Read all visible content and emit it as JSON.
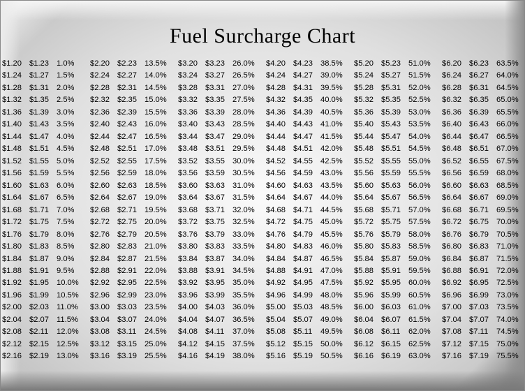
{
  "title": "Fuel Surcharge Chart",
  "table": {
    "type": "table",
    "columns_per_block": 3,
    "blocks": 6,
    "rows": 25,
    "background_color": "#e8e8e8",
    "text_color": "#000000",
    "title_fontsize": 30,
    "cell_fontsize": 11,
    "font_family_title": "Georgia",
    "font_family_body": "Arial",
    "start_low": 1.2,
    "start_high": 1.23,
    "start_pct": 1.0,
    "step_low": 0.04,
    "step_high": 0.04,
    "step_pct": 0.5,
    "data": [
      [
        "$1.20",
        "$1.23",
        "1.0%",
        "$2.20",
        "$2.23",
        "13.5%",
        "$3.20",
        "$3.23",
        "26.0%",
        "$4.20",
        "$4.23",
        "38.5%",
        "$5.20",
        "$5.23",
        "51.0%",
        "$6.20",
        "$6.23",
        "63.5%"
      ],
      [
        "$1.24",
        "$1.27",
        "1.5%",
        "$2.24",
        "$2.27",
        "14.0%",
        "$3.24",
        "$3.27",
        "26.5%",
        "$4.24",
        "$4.27",
        "39.0%",
        "$5.24",
        "$5.27",
        "51.5%",
        "$6.24",
        "$6.27",
        "64.0%"
      ],
      [
        "$1.28",
        "$1.31",
        "2.0%",
        "$2.28",
        "$2.31",
        "14.5%",
        "$3.28",
        "$3.31",
        "27.0%",
        "$4.28",
        "$4.31",
        "39.5%",
        "$5.28",
        "$5.31",
        "52.0%",
        "$6.28",
        "$6.31",
        "64.5%"
      ],
      [
        "$1.32",
        "$1.35",
        "2.5%",
        "$2.32",
        "$2.35",
        "15.0%",
        "$3.32",
        "$3.35",
        "27.5%",
        "$4.32",
        "$4.35",
        "40.0%",
        "$5.32",
        "$5.35",
        "52.5%",
        "$6.32",
        "$6.35",
        "65.0%"
      ],
      [
        "$1.36",
        "$1.39",
        "3.0%",
        "$2.36",
        "$2.39",
        "15.5%",
        "$3.36",
        "$3.39",
        "28.0%",
        "$4.36",
        "$4.39",
        "40.5%",
        "$5.36",
        "$5.39",
        "53.0%",
        "$6.36",
        "$6.39",
        "65.5%"
      ],
      [
        "$1.40",
        "$1.43",
        "3.5%",
        "$2.40",
        "$2.43",
        "16.0%",
        "$3.40",
        "$3.43",
        "28.5%",
        "$4.40",
        "$4.43",
        "41.0%",
        "$5.40",
        "$5.43",
        "53.5%",
        "$6.40",
        "$6.43",
        "66.0%"
      ],
      [
        "$1.44",
        "$1.47",
        "4.0%",
        "$2.44",
        "$2.47",
        "16.5%",
        "$3.44",
        "$3.47",
        "29.0%",
        "$4.44",
        "$4.47",
        "41.5%",
        "$5.44",
        "$5.47",
        "54.0%",
        "$6.44",
        "$6.47",
        "66.5%"
      ],
      [
        "$1.48",
        "$1.51",
        "4.5%",
        "$2.48",
        "$2.51",
        "17.0%",
        "$3.48",
        "$3.51",
        "29.5%",
        "$4.48",
        "$4.51",
        "42.0%",
        "$5.48",
        "$5.51",
        "54.5%",
        "$6.48",
        "$6.51",
        "67.0%"
      ],
      [
        "$1.52",
        "$1.55",
        "5.0%",
        "$2.52",
        "$2.55",
        "17.5%",
        "$3.52",
        "$3.55",
        "30.0%",
        "$4.52",
        "$4.55",
        "42.5%",
        "$5.52",
        "$5.55",
        "55.0%",
        "$6.52",
        "$6.55",
        "67.5%"
      ],
      [
        "$1.56",
        "$1.59",
        "5.5%",
        "$2.56",
        "$2.59",
        "18.0%",
        "$3.56",
        "$3.59",
        "30.5%",
        "$4.56",
        "$4.59",
        "43.0%",
        "$5.56",
        "$5.59",
        "55.5%",
        "$6.56",
        "$6.59",
        "68.0%"
      ],
      [
        "$1.60",
        "$1.63",
        "6.0%",
        "$2.60",
        "$2.63",
        "18.5%",
        "$3.60",
        "$3.63",
        "31.0%",
        "$4.60",
        "$4.63",
        "43.5%",
        "$5.60",
        "$5.63",
        "56.0%",
        "$6.60",
        "$6.63",
        "68.5%"
      ],
      [
        "$1.64",
        "$1.67",
        "6.5%",
        "$2.64",
        "$2.67",
        "19.0%",
        "$3.64",
        "$3.67",
        "31.5%",
        "$4.64",
        "$4.67",
        "44.0%",
        "$5.64",
        "$5.67",
        "56.5%",
        "$6.64",
        "$6.67",
        "69.0%"
      ],
      [
        "$1.68",
        "$1.71",
        "7.0%",
        "$2.68",
        "$2.71",
        "19.5%",
        "$3.68",
        "$3.71",
        "32.0%",
        "$4.68",
        "$4.71",
        "44.5%",
        "$5.68",
        "$5.71",
        "57.0%",
        "$6.68",
        "$6.71",
        "69.5%"
      ],
      [
        "$1.72",
        "$1.75",
        "7.5%",
        "$2.72",
        "$2.75",
        "20.0%",
        "$3.72",
        "$3.75",
        "32.5%",
        "$4.72",
        "$4.75",
        "45.0%",
        "$5.72",
        "$5.75",
        "57.5%",
        "$6.72",
        "$6.75",
        "70.0%"
      ],
      [
        "$1.76",
        "$1.79",
        "8.0%",
        "$2.76",
        "$2.79",
        "20.5%",
        "$3.76",
        "$3.79",
        "33.0%",
        "$4.76",
        "$4.79",
        "45.5%",
        "$5.76",
        "$5.79",
        "58.0%",
        "$6.76",
        "$6.79",
        "70.5%"
      ],
      [
        "$1.80",
        "$1.83",
        "8.5%",
        "$2.80",
        "$2.83",
        "21.0%",
        "$3.80",
        "$3.83",
        "33.5%",
        "$4.80",
        "$4.83",
        "46.0%",
        "$5.80",
        "$5.83",
        "58.5%",
        "$6.80",
        "$6.83",
        "71.0%"
      ],
      [
        "$1.84",
        "$1.87",
        "9.0%",
        "$2.84",
        "$2.87",
        "21.5%",
        "$3.84",
        "$3.87",
        "34.0%",
        "$4.84",
        "$4.87",
        "46.5%",
        "$5.84",
        "$5.87",
        "59.0%",
        "$6.84",
        "$6.87",
        "71.5%"
      ],
      [
        "$1.88",
        "$1.91",
        "9.5%",
        "$2.88",
        "$2.91",
        "22.0%",
        "$3.88",
        "$3.91",
        "34.5%",
        "$4.88",
        "$4.91",
        "47.0%",
        "$5.88",
        "$5.91",
        "59.5%",
        "$6.88",
        "$6.91",
        "72.0%"
      ],
      [
        "$1.92",
        "$1.95",
        "10.0%",
        "$2.92",
        "$2.95",
        "22.5%",
        "$3.92",
        "$3.95",
        "35.0%",
        "$4.92",
        "$4.95",
        "47.5%",
        "$5.92",
        "$5.95",
        "60.0%",
        "$6.92",
        "$6.95",
        "72.5%"
      ],
      [
        "$1.96",
        "$1.99",
        "10.5%",
        "$2.96",
        "$2.99",
        "23.0%",
        "$3.96",
        "$3.99",
        "35.5%",
        "$4.96",
        "$4.99",
        "48.0%",
        "$5.96",
        "$5.99",
        "60.5%",
        "$6.96",
        "$6.99",
        "73.0%"
      ],
      [
        "$2.00",
        "$2.03",
        "11.0%",
        "$3.00",
        "$3.03",
        "23.5%",
        "$4.00",
        "$4.03",
        "36.0%",
        "$5.00",
        "$5.03",
        "48.5%",
        "$6.00",
        "$6.03",
        "61.0%",
        "$7.00",
        "$7.03",
        "73.5%"
      ],
      [
        "$2.04",
        "$2.07",
        "11.5%",
        "$3.04",
        "$3.07",
        "24.0%",
        "$4.04",
        "$4.07",
        "36.5%",
        "$5.04",
        "$5.07",
        "49.0%",
        "$6.04",
        "$6.07",
        "61.5%",
        "$7.04",
        "$7.07",
        "74.0%"
      ],
      [
        "$2.08",
        "$2.11",
        "12.0%",
        "$3.08",
        "$3.11",
        "24.5%",
        "$4.08",
        "$4.11",
        "37.0%",
        "$5.08",
        "$5.11",
        "49.5%",
        "$6.08",
        "$6.11",
        "62.0%",
        "$7.08",
        "$7.11",
        "74.5%"
      ],
      [
        "$2.12",
        "$2.15",
        "12.5%",
        "$3.12",
        "$3.15",
        "25.0%",
        "$4.12",
        "$4.15",
        "37.5%",
        "$5.12",
        "$5.15",
        "50.0%",
        "$6.12",
        "$6.15",
        "62.5%",
        "$7.12",
        "$7.15",
        "75.0%"
      ],
      [
        "$2.16",
        "$2.19",
        "13.0%",
        "$3.16",
        "$3.19",
        "25.5%",
        "$4.16",
        "$4.19",
        "38.0%",
        "$5.16",
        "$5.19",
        "50.5%",
        "$6.16",
        "$6.19",
        "63.0%",
        "$7.16",
        "$7.19",
        "75.5%"
      ]
    ]
  }
}
